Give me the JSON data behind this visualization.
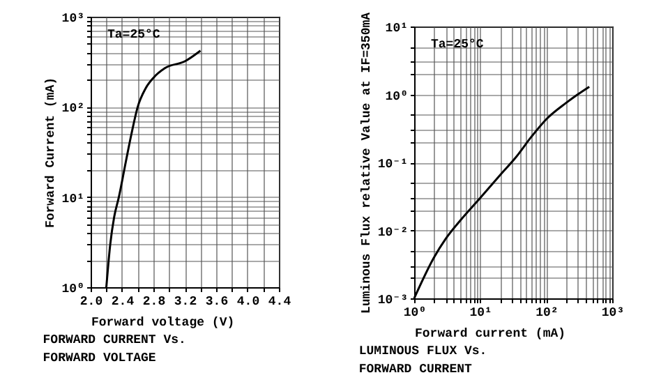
{
  "chart_data": [
    {
      "type": "line",
      "title": "FORWARD CURRENT Vs.\nFORWARD VOLTAGE",
      "xlabel": "Forward voltage (V)",
      "ylabel": "Forward Current (mA)",
      "annotations": [
        "Ta=25°C"
      ],
      "log": "y",
      "grid": true,
      "legend": false,
      "series": [
        {
          "color": "#000000",
          "x": [
            2.2,
            2.25,
            2.3,
            2.36,
            2.45,
            2.52,
            2.6,
            2.7,
            2.8,
            2.95,
            3.2,
            3.4
          ],
          "values": [
            1,
            3,
            6,
            10,
            25,
            50,
            100,
            160,
            210,
            270,
            320,
            420
          ]
        }
      ],
      "xlim": [
        2.0,
        4.4
      ],
      "xticks": [
        {
          "value": 2,
          "label": "2.0"
        },
        {
          "value": 2.2,
          "label": null
        },
        2.4,
        {
          "value": 2.6,
          "label": null
        },
        2.8,
        {
          "value": 3,
          "label": null
        },
        3.2,
        {
          "value": 3.4,
          "label": null
        },
        3.6,
        {
          "value": 3.8,
          "label": null
        },
        {
          "value": 4,
          "label": "4.0"
        },
        {
          "value": 4.2,
          "label": null
        },
        4.4
      ],
      "ylim": [
        1,
        1000
      ],
      "yticks": [
        {
          "value": 1,
          "label": "10⁰"
        },
        {
          "value": 2,
          "label": null
        },
        {
          "value": 3,
          "label": null
        },
        {
          "value": 4,
          "label": null
        },
        {
          "value": 5,
          "label": null
        },
        {
          "value": 6,
          "label": null
        },
        {
          "value": 7,
          "label": null
        },
        {
          "value": 8,
          "label": null
        },
        {
          "value": 9,
          "label": null
        },
        {
          "value": 10,
          "label": "10¹"
        },
        {
          "value": 20,
          "label": null
        },
        {
          "value": 30,
          "label": null
        },
        {
          "value": 40,
          "label": null
        },
        {
          "value": 50,
          "label": null
        },
        {
          "value": 60,
          "label": null
        },
        {
          "value": 70,
          "label": null
        },
        {
          "value": 80,
          "label": null
        },
        {
          "value": 90,
          "label": null
        },
        {
          "value": 100,
          "label": "10²"
        },
        {
          "value": 200,
          "label": null
        },
        {
          "value": 300,
          "label": null
        },
        {
          "value": 400,
          "label": null
        },
        {
          "value": 500,
          "label": null
        },
        {
          "value": 600,
          "label": null
        },
        {
          "value": 700,
          "label": null
        },
        {
          "value": 800,
          "label": null
        },
        {
          "value": 900,
          "label": null
        },
        {
          "value": 1000,
          "label": "10³"
        }
      ]
    },
    {
      "type": "line",
      "title": "LUMINOUS FLUX Vs.\nFORWARD CURRENT",
      "xlabel": "Forward current (mA)",
      "ylabel": "Luminous Flux relative Value at IF=350mA",
      "annotations": [
        "Ta=25°C"
      ],
      "log": "xy",
      "grid": true,
      "legend": false,
      "series": [
        {
          "color": "#000000",
          "x": [
            1,
            2,
            3,
            5,
            10,
            20,
            35,
            60,
            100,
            200,
            300,
            450
          ],
          "values": [
            0.001,
            0.004,
            0.0075,
            0.014,
            0.03,
            0.065,
            0.12,
            0.24,
            0.43,
            0.75,
            1.0,
            1.3
          ]
        }
      ],
      "xlim": [
        1,
        1000
      ],
      "xticks": [
        {
          "value": 1,
          "label": "10⁰"
        },
        {
          "value": 2,
          "label": null
        },
        {
          "value": 3,
          "label": null
        },
        {
          "value": 4,
          "label": null
        },
        {
          "value": 5,
          "label": null
        },
        {
          "value": 6,
          "label": null
        },
        {
          "value": 7,
          "label": null
        },
        {
          "value": 8,
          "label": null
        },
        {
          "value": 9,
          "label": null
        },
        {
          "value": 10,
          "label": "10¹"
        },
        {
          "value": 20,
          "label": null
        },
        {
          "value": 30,
          "label": null
        },
        {
          "value": 40,
          "label": null
        },
        {
          "value": 50,
          "label": null
        },
        {
          "value": 60,
          "label": null
        },
        {
          "value": 70,
          "label": null
        },
        {
          "value": 80,
          "label": null
        },
        {
          "value": 90,
          "label": null
        },
        {
          "value": 100,
          "label": "10²"
        },
        {
          "value": 200,
          "label": null
        },
        {
          "value": 300,
          "label": null
        },
        {
          "value": 400,
          "label": null
        },
        {
          "value": 500,
          "label": null
        },
        {
          "value": 600,
          "label": null
        },
        {
          "value": 700,
          "label": null
        },
        {
          "value": 800,
          "label": null
        },
        {
          "value": 900,
          "label": null
        },
        {
          "value": 1000,
          "label": "10³"
        }
      ],
      "ylim": [
        0.001,
        10
      ],
      "yticks": [
        {
          "value": 0.001,
          "label": "10⁻³"
        },
        {
          "value": 0.002,
          "label": null
        },
        {
          "value": 0.003,
          "label": null
        },
        {
          "value": 0.005,
          "label": null
        },
        {
          "value": 0.01,
          "label": "10⁻²"
        },
        {
          "value": 0.02,
          "label": null
        },
        {
          "value": 0.03,
          "label": null
        },
        {
          "value": 0.05,
          "label": null
        },
        {
          "value": 0.1,
          "label": "10⁻¹"
        },
        {
          "value": 0.2,
          "label": null
        },
        {
          "value": 0.3,
          "label": null
        },
        {
          "value": 0.5,
          "label": null
        },
        {
          "value": 1,
          "label": "10⁰"
        },
        {
          "value": 2,
          "label": null
        },
        {
          "value": 3,
          "label": null
        },
        {
          "value": 5,
          "label": null
        },
        {
          "value": 10,
          "label": "10¹"
        }
      ]
    }
  ]
}
